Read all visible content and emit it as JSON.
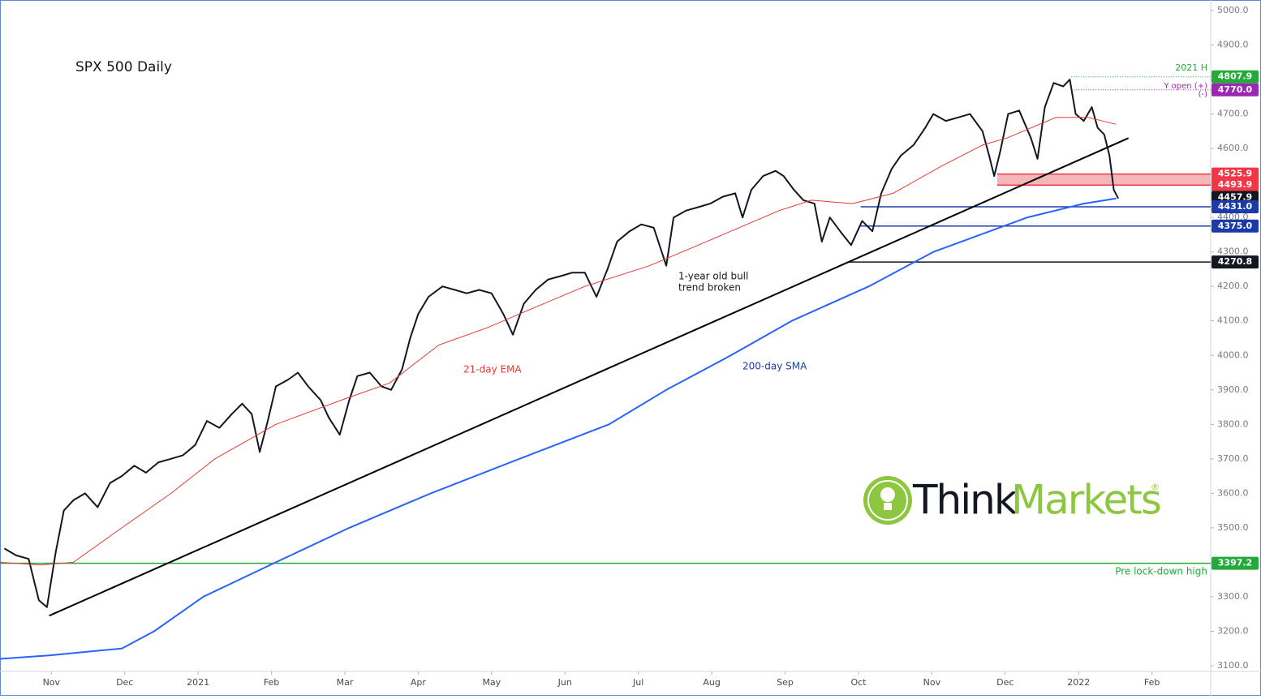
{
  "chart_data": {
    "type": "line",
    "title": "SPX 500 Daily",
    "xlim": [
      -0.7,
      15.8
    ],
    "xticks": [
      {
        "value": 0,
        "label": "Nov"
      },
      {
        "value": 1,
        "label": "Dec"
      },
      {
        "value": 2,
        "label": "2021"
      },
      {
        "value": 3,
        "label": "Feb"
      },
      {
        "value": 4,
        "label": "Mar"
      },
      {
        "value": 5,
        "label": "Apr"
      },
      {
        "value": 6,
        "label": "May"
      },
      {
        "value": 7,
        "label": "Jun"
      },
      {
        "value": 8,
        "label": "Jul"
      },
      {
        "value": 9,
        "label": "Aug"
      },
      {
        "value": 10,
        "label": "Sep"
      },
      {
        "value": 11,
        "label": "Oct"
      },
      {
        "value": 12,
        "label": "Nov"
      },
      {
        "value": 13,
        "label": "Dec"
      },
      {
        "value": 14,
        "label": "2022"
      },
      {
        "value": 15,
        "label": "Feb"
      }
    ],
    "ylim": [
      3100,
      5000
    ],
    "yticks": [
      {
        "value": 3100,
        "label": "3100.0"
      },
      {
        "value": 3200,
        "label": "3200.0"
      },
      {
        "value": 3300,
        "label": "3300.0"
      },
      {
        "value": 3400,
        "label": "3400.0"
      },
      {
        "value": 3500,
        "label": "3500.0"
      },
      {
        "value": 3600,
        "label": "3600.0"
      },
      {
        "value": 3700,
        "label": "3700.0"
      },
      {
        "value": 3800,
        "label": "3800.0"
      },
      {
        "value": 3900,
        "label": "3900.0"
      },
      {
        "value": 4000,
        "label": "4000.0"
      },
      {
        "value": 4100,
        "label": "4100.0"
      },
      {
        "value": 4200,
        "label": "4200.0"
      },
      {
        "value": 4300,
        "label": "4300.0"
      },
      {
        "value": 4400,
        "label": "4400.0"
      },
      {
        "value": 4500,
        "label": "4500.0"
      },
      {
        "value": 4600,
        "label": "4600.0"
      },
      {
        "value": 4700,
        "label": "4700.0"
      },
      {
        "value": 4800,
        "label": "4800.0"
      },
      {
        "value": 4900,
        "label": "4900.0"
      },
      {
        "value": 5000,
        "label": "5000.0"
      }
    ],
    "series": [
      {
        "color": "#131722",
        "x": [
          -0.64,
          -0.48,
          -0.31,
          -0.17,
          -0.06,
          0.06,
          0.17,
          0.3,
          0.46,
          0.63,
          0.8,
          0.96,
          1.13,
          1.29,
          1.46,
          1.63,
          1.79,
          1.96,
          2.12,
          2.29,
          2.46,
          2.6,
          2.73,
          2.84,
          2.95,
          3.06,
          3.23,
          3.36,
          3.5,
          3.67,
          3.78,
          3.93,
          4.06,
          4.17,
          4.34,
          4.5,
          4.63,
          4.78,
          4.89,
          5.0,
          5.14,
          5.33,
          5.5,
          5.66,
          5.83,
          6.0,
          6.16,
          6.29,
          6.44,
          6.6,
          6.77,
          6.94,
          7.1,
          7.27,
          7.43,
          7.58,
          7.71,
          7.88,
          8.04,
          8.21,
          8.38,
          8.48,
          8.65,
          8.82,
          8.98,
          9.15,
          9.32,
          9.42,
          9.54,
          9.7,
          9.87,
          9.98,
          10.12,
          10.25,
          10.4,
          10.5,
          10.61,
          10.75,
          10.9,
          11.05,
          11.19,
          11.31,
          11.45,
          11.58,
          11.75,
          11.91,
          12.02,
          12.19,
          12.36,
          12.52,
          12.69,
          12.78,
          12.85,
          12.93,
          13.04,
          13.19,
          13.35,
          13.44,
          13.54,
          13.66,
          13.79,
          13.88,
          13.96,
          14.07,
          14.18,
          14.26,
          14.35,
          14.42,
          14.48,
          14.54
        ],
        "values": [
          3440,
          3420,
          3410,
          3290,
          3270,
          3430,
          3550,
          3580,
          3600,
          3560,
          3630,
          3650,
          3680,
          3660,
          3690,
          3700,
          3710,
          3740,
          3810,
          3790,
          3830,
          3860,
          3830,
          3720,
          3810,
          3910,
          3930,
          3950,
          3910,
          3870,
          3820,
          3770,
          3870,
          3940,
          3950,
          3910,
          3900,
          3960,
          4050,
          4120,
          4170,
          4200,
          4190,
          4180,
          4190,
          4180,
          4120,
          4060,
          4150,
          4190,
          4220,
          4230,
          4240,
          4240,
          4170,
          4250,
          4330,
          4360,
          4380,
          4370,
          4260,
          4400,
          4420,
          4430,
          4440,
          4460,
          4470,
          4400,
          4480,
          4520,
          4535,
          4520,
          4480,
          4450,
          4440,
          4330,
          4400,
          4360,
          4320,
          4390,
          4360,
          4470,
          4540,
          4580,
          4610,
          4660,
          4700,
          4680,
          4690,
          4700,
          4650,
          4580,
          4520,
          4590,
          4700,
          4710,
          4630,
          4570,
          4720,
          4790,
          4780,
          4800,
          4700,
          4680,
          4720,
          4660,
          4640,
          4580,
          4480,
          4455
        ]
      },
      {
        "name": "21-day EMA",
        "color": "#e53935",
        "x": [
          -0.7,
          -0.15,
          0.3,
          0.96,
          1.63,
          2.23,
          3.06,
          3.95,
          4.61,
          5.28,
          5.94,
          6.6,
          7.27,
          8.15,
          8.93,
          9.92,
          10.36,
          10.92,
          11.47,
          12.14,
          12.69,
          13.02,
          13.69,
          14.13,
          14.51
        ],
        "values": [
          3400,
          3392,
          3400,
          3500,
          3600,
          3700,
          3800,
          3870,
          3920,
          4030,
          4080,
          4140,
          4200,
          4260,
          4330,
          4420,
          4450,
          4440,
          4470,
          4550,
          4610,
          4630,
          4690,
          4690,
          4670
        ]
      },
      {
        "name": "200-day SMA",
        "color": "#2962ff",
        "x": [
          -0.7,
          -0.03,
          0.96,
          1.4,
          2.07,
          3.06,
          4.06,
          5.17,
          6.38,
          7.6,
          8.38,
          9.26,
          10.09,
          11.14,
          12.02,
          13.3,
          14.07,
          14.51
        ],
        "values": [
          3120,
          3130,
          3150,
          3200,
          3300,
          3400,
          3500,
          3600,
          3700,
          3800,
          3900,
          4000,
          4100,
          4200,
          4300,
          4400,
          4440,
          4455
        ]
      },
      {
        "color": "#000000",
        "x": [
          -0.03,
          14.68
        ],
        "values": [
          3245,
          4630
        ]
      }
    ],
    "levels": [
      {
        "value": 4807.9,
        "label": "4807.9",
        "color": "#22ab3a",
        "line": "dotted",
        "from": 13.9
      },
      {
        "value": 4770.0,
        "label": "4770.0",
        "color": "#9c27b0",
        "line": "dotted",
        "from": 13.9
      },
      {
        "value": 4525.9,
        "label": "4525.9",
        "color": "#f23645",
        "line": "solid",
        "from": 12.89,
        "fill_to_next": "#f6b5b9"
      },
      {
        "value": 4493.9,
        "label": "4493.9",
        "color": "#f23645",
        "line": "solid",
        "from": 12.89
      },
      {
        "value": 4457.9,
        "label": "4457.9",
        "color": "#131722",
        "line": "none",
        "from": 14.6
      },
      {
        "value": 4431.0,
        "label": "4431.0",
        "color": "#1b3ba8",
        "line": "solid",
        "from": 11.03
      },
      {
        "value": 4375.0,
        "label": "4375.0",
        "color": "#1b3ba8",
        "line": "solid",
        "from": 11.03
      },
      {
        "value": 4270.8,
        "label": "4270.8",
        "color": "#131722",
        "line": "solid",
        "from": 10.86
      },
      {
        "value": 3397.2,
        "label": "3397.2",
        "color": "#22ab3a",
        "line": "solid",
        "from": -0.7
      }
    ],
    "annotations": {
      "high": "2021 H",
      "y_open_plus": "Y open (+)",
      "y_open_minus": "(-)",
      "trend": [
        "1-year old bull",
        "trend broken"
      ],
      "lockdown": "Pre lock-down high"
    },
    "logo": {
      "think": "Think",
      "markets": "Markets",
      "mark": "®"
    }
  }
}
